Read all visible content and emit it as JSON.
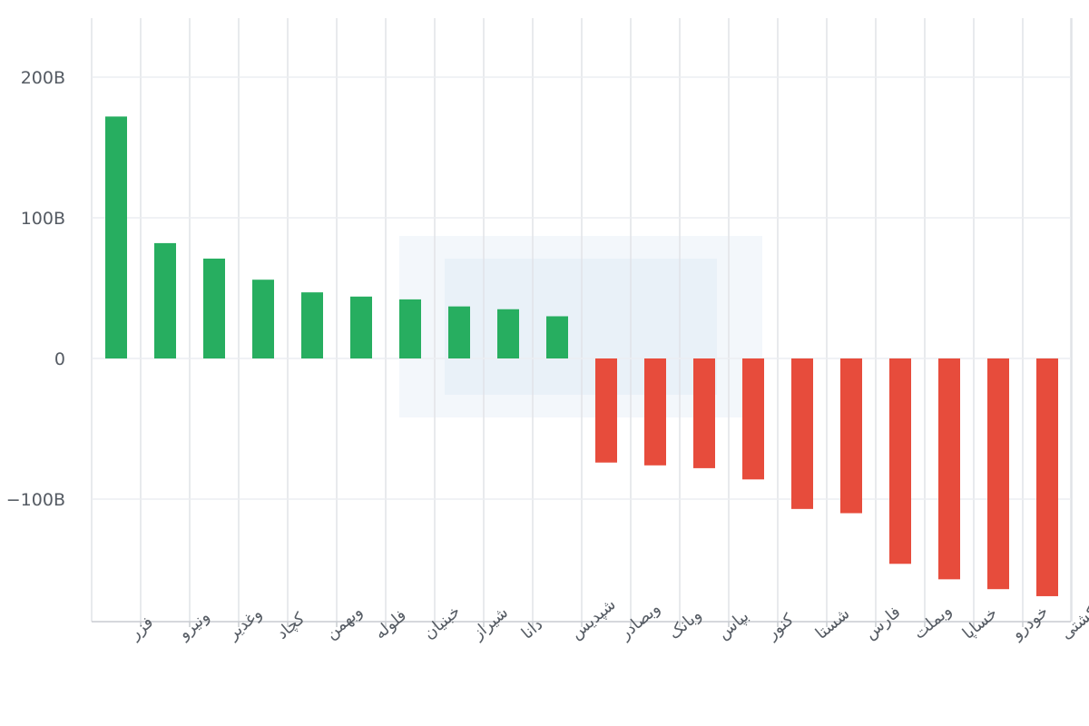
{
  "chart_data": {
    "type": "bar",
    "categories": [
      "فزر",
      "ونیرو",
      "وغدیر",
      "کچاد",
      "وبهمن",
      "فلوله",
      "خبنیان",
      "شیراز",
      "دانا",
      "شپدیس",
      "وبصادر",
      "وبانک",
      "بپاس",
      "کنور",
      "شستا",
      "فارس",
      "وبملت",
      "خساپا",
      "خودرو",
      "حکشتی"
    ],
    "values": [
      172,
      82,
      71,
      56,
      47,
      44,
      42,
      37,
      35,
      30,
      -74,
      -76,
      -78,
      -86,
      -107,
      -110,
      -146,
      -157,
      -164,
      -169
    ],
    "ylim": [
      -188,
      241
    ],
    "y_ticks": [
      200,
      100,
      0,
      -100
    ],
    "y_tick_labels": [
      "200B",
      "100B",
      "0",
      "−100B"
    ],
    "unit": "B",
    "grid": true,
    "colors": {
      "positive": "#27ae60",
      "negative": "#e74c3c"
    }
  }
}
